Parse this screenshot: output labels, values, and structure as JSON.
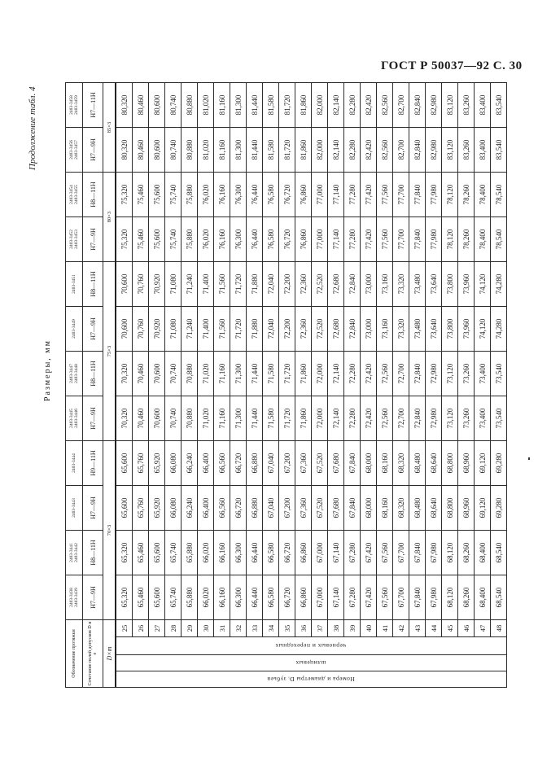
{
  "page": {
    "header": "ГОСТ Р 50037—92 С. 30",
    "continuation": "Продолжение табл. 4",
    "units": "Размеры, мм"
  },
  "table": {
    "header": {
      "designation_label": "Обозначение протяжки",
      "tolerance_label": "Сочетание полей допусков D и e",
      "module_label": "D×m"
    },
    "side_labels": {
      "teeth": "Номера и диаметры Dᵢ зубьев",
      "finishing": "шлицевых",
      "roughing": "черновых и переходных"
    },
    "modules": [
      "70×3",
      "75×3",
      "80×3",
      "85×3"
    ],
    "rows": [
      "25",
      "26",
      "27",
      "28",
      "29",
      "30",
      "31",
      "32",
      "33",
      "34",
      "35",
      "36",
      "37",
      "38",
      "39",
      "40",
      "41",
      "42",
      "43",
      "44",
      "45",
      "46",
      "47",
      "48"
    ],
    "columns": [
      {
        "designation": [
          "2403-3438",
          "2403-3439"
        ],
        "tolerance": "H7—9H",
        "values": [
          "65,320",
          "65,460",
          "65,600",
          "65,740",
          "65,880",
          "66,020",
          "66,160",
          "66,300",
          "66,440",
          "66,580",
          "66,720",
          "66,860",
          "67,000",
          "67,140",
          "67,280",
          "67,420",
          "67,560",
          "67,700",
          "67,840",
          "67,980",
          "68,120",
          "68,260",
          "68,400",
          "68,540"
        ]
      },
      {
        "designation": [
          "2403-3441",
          "2403-3442"
        ],
        "tolerance": "H8—11H",
        "values": [
          "65,320",
          "65,460",
          "65,600",
          "65,740",
          "65,880",
          "66,020",
          "66,160",
          "66,300",
          "66,440",
          "66,580",
          "66,720",
          "66,860",
          "67,000",
          "67,140",
          "67,280",
          "67,420",
          "67,560",
          "67,700",
          "67,840",
          "67,980",
          "68,120",
          "68,260",
          "68,400",
          "68,540"
        ]
      },
      {
        "designation": [
          "2403-3443"
        ],
        "tolerance": "H7—9H",
        "values": [
          "65,600",
          "65,760",
          "65,920",
          "66,080",
          "66,240",
          "66,400",
          "66,560",
          "66,720",
          "66,880",
          "67,040",
          "67,200",
          "67,360",
          "67,520",
          "67,680",
          "67,840",
          "68,000",
          "68,160",
          "68,320",
          "68,480",
          "68,640",
          "68,800",
          "68,960",
          "69,120",
          "69,280"
        ]
      },
      {
        "designation": [
          "2403-3444"
        ],
        "tolerance": "H9—11H",
        "values": [
          "65,600",
          "65,760",
          "65,920",
          "66,080",
          "66,240",
          "66,400",
          "66,560",
          "66,720",
          "66,880",
          "67,040",
          "67,200",
          "67,360",
          "67,520",
          "67,680",
          "67,840",
          "68,000",
          "68,160",
          "68,320",
          "68,480",
          "68,640",
          "68,800",
          "68,960",
          "69,120",
          "69,280"
        ]
      },
      {
        "designation": [
          "2403-3445",
          "2403-3446"
        ],
        "tolerance": "H7—9H",
        "values": [
          "70,320",
          "70,460",
          "70,600",
          "70,740",
          "70,880",
          "71,020",
          "71,160",
          "71,300",
          "71,440",
          "71,580",
          "71,720",
          "71,860",
          "72,000",
          "72,140",
          "72,280",
          "72,420",
          "72,560",
          "72,700",
          "72,840",
          "72,980",
          "73,120",
          "73,260",
          "73,400",
          "73,540"
        ]
      },
      {
        "designation": [
          "2403-3447",
          "2403-3448"
        ],
        "tolerance": "H8—11H",
        "values": [
          "70,320",
          "70,460",
          "70,600",
          "70,740",
          "70,880",
          "71,020",
          "71,160",
          "71,300",
          "71,440",
          "71,580",
          "71,720",
          "71,860",
          "72,000",
          "72,140",
          "72,280",
          "72,420",
          "72,560",
          "72,700",
          "72,840",
          "72,980",
          "73,120",
          "73,260",
          "73,400",
          "73,540"
        ]
      },
      {
        "designation": [
          "2403-3449"
        ],
        "tolerance": "H7—9H",
        "values": [
          "70,600",
          "70,760",
          "70,920",
          "71,080",
          "71,240",
          "71,400",
          "71,560",
          "71,720",
          "71,880",
          "72,040",
          "72,200",
          "72,360",
          "72,520",
          "72,680",
          "72,840",
          "73,000",
          "73,160",
          "73,320",
          "73,480",
          "73,640",
          "73,800",
          "73,960",
          "74,120",
          "74,280"
        ]
      },
      {
        "designation": [
          "2403-3451"
        ],
        "tolerance": "H8—11H",
        "values": [
          "70,600",
          "70,760",
          "70,920",
          "71,080",
          "71,240",
          "71,400",
          "71,560",
          "71,720",
          "71,880",
          "72,040",
          "72,200",
          "72,360",
          "72,520",
          "72,680",
          "72,840",
          "73,000",
          "73,160",
          "73,320",
          "73,480",
          "73,640",
          "73,800",
          "73,960",
          "74,120",
          "74,280"
        ]
      },
      {
        "designation": [
          "2403-3452",
          "2403-3453"
        ],
        "tolerance": "H7—9H",
        "values": [
          "75,320",
          "75,460",
          "75,600",
          "75,740",
          "75,880",
          "76,020",
          "76,160",
          "76,300",
          "76,440",
          "76,580",
          "76,720",
          "76,860",
          "77,000",
          "77,140",
          "77,280",
          "77,420",
          "77,560",
          "77,700",
          "77,840",
          "77,980",
          "78,120",
          "78,260",
          "78,400",
          "78,540"
        ]
      },
      {
        "designation": [
          "2403-3454",
          "2403-3455"
        ],
        "tolerance": "H8—11H",
        "values": [
          "75,320",
          "75,460",
          "75,600",
          "75,740",
          "75,880",
          "76,020",
          "76,160",
          "76,300",
          "76,440",
          "76,580",
          "76,720",
          "76,860",
          "77,000",
          "77,140",
          "77,280",
          "77,420",
          "77,560",
          "77,700",
          "77,840",
          "77,980",
          "78,120",
          "78,260",
          "78,400",
          "78,540"
        ]
      },
      {
        "designation": [
          "2403-3456",
          "2403-3457"
        ],
        "tolerance": "H7—9H",
        "values": [
          "80,320",
          "80,460",
          "80,600",
          "80,740",
          "80,880",
          "81,020",
          "81,160",
          "81,300",
          "81,440",
          "81,580",
          "81,720",
          "81,860",
          "82,000",
          "82,140",
          "82,280",
          "82,420",
          "82,560",
          "82,700",
          "82,840",
          "82,980",
          "83,120",
          "83,260",
          "83,400",
          "83,540"
        ]
      },
      {
        "designation": [
          "2403-3458",
          "2403-3459"
        ],
        "tolerance": "H7—11H",
        "values": [
          "80,320",
          "80,460",
          "80,600",
          "80,740",
          "80,880",
          "81,020",
          "81,160",
          "81,300",
          "81,440",
          "81,580",
          "81,720",
          "81,860",
          "82,000",
          "82,140",
          "82,280",
          "82,420",
          "82,560",
          "82,700",
          "82,840",
          "82,980",
          "83,120",
          "83,260",
          "83,400",
          "83,540"
        ]
      }
    ]
  }
}
